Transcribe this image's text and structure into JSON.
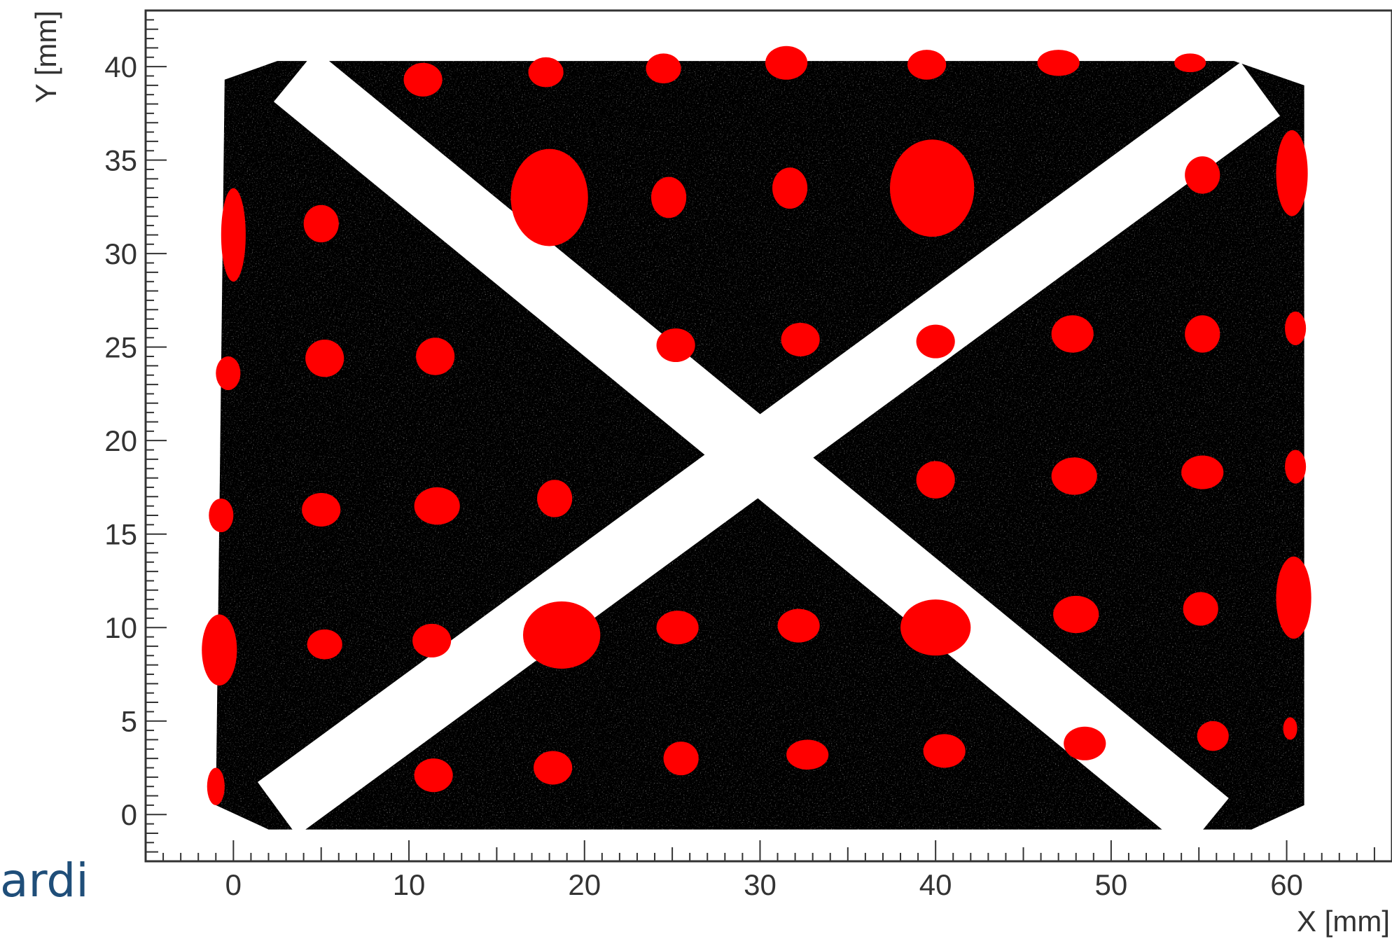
{
  "edge_caption": "ardi",
  "chart_data": {
    "type": "scatter",
    "title": "",
    "xlabel": "X [mm]",
    "ylabel": "Y [mm]",
    "xlim": [
      -5,
      66
    ],
    "ylim": [
      -2.5,
      43
    ],
    "xticks": [
      0,
      10,
      20,
      30,
      40,
      50,
      60
    ],
    "yticks": [
      0,
      5,
      10,
      15,
      20,
      25,
      30,
      35,
      40
    ],
    "grid": false,
    "legend": "none",
    "colors": {
      "background_hits": "#000000",
      "spot_hits": "#ff0000",
      "frame": "#333333"
    },
    "series": [
      {
        "color": "#000000",
        "description_type": "density-region",
        "region": [
          [
            2.5,
            40.3
          ],
          [
            57,
            40.3
          ],
          [
            61,
            39
          ],
          [
            61,
            0.5
          ],
          [
            58,
            -0.8
          ],
          [
            2,
            -0.8
          ],
          [
            -1,
            0.5
          ],
          [
            -0.5,
            39.3
          ]
        ],
        "gaps": [
          [
            [
              3.5,
              39.5
            ],
            [
              55.5,
              -0.5
            ]
          ],
          [
            [
              2.5,
              0.3
            ],
            [
              58.5,
              38.8
            ]
          ]
        ]
      },
      {
        "color": "#ff0000",
        "spots": [
          {
            "x": 10.8,
            "y": 39.3,
            "rx": 1.1,
            "ry": 0.9
          },
          {
            "x": 17.8,
            "y": 39.7,
            "rx": 1.0,
            "ry": 0.8
          },
          {
            "x": 24.5,
            "y": 39.9,
            "rx": 1.0,
            "ry": 0.8
          },
          {
            "x": 31.5,
            "y": 40.2,
            "rx": 1.2,
            "ry": 0.9
          },
          {
            "x": 39.5,
            "y": 40.1,
            "rx": 1.1,
            "ry": 0.8
          },
          {
            "x": 47.0,
            "y": 40.2,
            "rx": 1.2,
            "ry": 0.7
          },
          {
            "x": 54.5,
            "y": 40.2,
            "rx": 0.9,
            "ry": 0.5
          },
          {
            "x": 0.0,
            "y": 31.0,
            "rx": 0.7,
            "ry": 2.5
          },
          {
            "x": 5.0,
            "y": 31.6,
            "rx": 1.0,
            "ry": 1.0
          },
          {
            "x": 18.0,
            "y": 33.0,
            "rx": 2.2,
            "ry": 2.6
          },
          {
            "x": 24.8,
            "y": 33.0,
            "rx": 1.0,
            "ry": 1.1
          },
          {
            "x": 31.7,
            "y": 33.5,
            "rx": 1.0,
            "ry": 1.1
          },
          {
            "x": 39.8,
            "y": 33.5,
            "rx": 2.4,
            "ry": 2.6
          },
          {
            "x": 55.2,
            "y": 34.2,
            "rx": 1.0,
            "ry": 1.0
          },
          {
            "x": 60.3,
            "y": 34.3,
            "rx": 0.9,
            "ry": 2.3
          },
          {
            "x": -0.3,
            "y": 23.6,
            "rx": 0.7,
            "ry": 0.9
          },
          {
            "x": 5.2,
            "y": 24.4,
            "rx": 1.1,
            "ry": 1.0
          },
          {
            "x": 11.5,
            "y": 24.5,
            "rx": 1.1,
            "ry": 1.0
          },
          {
            "x": 25.2,
            "y": 25.1,
            "rx": 1.1,
            "ry": 0.9
          },
          {
            "x": 32.3,
            "y": 25.4,
            "rx": 1.1,
            "ry": 0.9
          },
          {
            "x": 40.0,
            "y": 25.3,
            "rx": 1.1,
            "ry": 0.9
          },
          {
            "x": 47.8,
            "y": 25.7,
            "rx": 1.2,
            "ry": 1.0
          },
          {
            "x": 55.2,
            "y": 25.7,
            "rx": 1.0,
            "ry": 1.0
          },
          {
            "x": 60.5,
            "y": 26.0,
            "rx": 0.6,
            "ry": 0.9
          },
          {
            "x": -0.7,
            "y": 16.0,
            "rx": 0.7,
            "ry": 0.9
          },
          {
            "x": 5.0,
            "y": 16.3,
            "rx": 1.1,
            "ry": 0.9
          },
          {
            "x": 11.6,
            "y": 16.5,
            "rx": 1.3,
            "ry": 1.0
          },
          {
            "x": 18.3,
            "y": 16.9,
            "rx": 1.0,
            "ry": 1.0
          },
          {
            "x": 40.0,
            "y": 17.9,
            "rx": 1.1,
            "ry": 1.0
          },
          {
            "x": 47.9,
            "y": 18.1,
            "rx": 1.3,
            "ry": 1.0
          },
          {
            "x": 55.2,
            "y": 18.3,
            "rx": 1.2,
            "ry": 0.9
          },
          {
            "x": 60.5,
            "y": 18.6,
            "rx": 0.6,
            "ry": 0.9
          },
          {
            "x": -0.8,
            "y": 8.8,
            "rx": 1.0,
            "ry": 1.9
          },
          {
            "x": 5.2,
            "y": 9.1,
            "rx": 1.0,
            "ry": 0.8
          },
          {
            "x": 11.3,
            "y": 9.3,
            "rx": 1.1,
            "ry": 0.9
          },
          {
            "x": 18.7,
            "y": 9.6,
            "rx": 2.2,
            "ry": 1.8
          },
          {
            "x": 25.3,
            "y": 10.0,
            "rx": 1.2,
            "ry": 0.9
          },
          {
            "x": 32.2,
            "y": 10.1,
            "rx": 1.2,
            "ry": 0.9
          },
          {
            "x": 40.0,
            "y": 10.0,
            "rx": 2.0,
            "ry": 1.5
          },
          {
            "x": 48.0,
            "y": 10.7,
            "rx": 1.3,
            "ry": 1.0
          },
          {
            "x": 55.1,
            "y": 11.0,
            "rx": 1.0,
            "ry": 0.9
          },
          {
            "x": 60.4,
            "y": 11.6,
            "rx": 1.0,
            "ry": 2.2
          },
          {
            "x": -1.0,
            "y": 1.5,
            "rx": 0.5,
            "ry": 1.0
          },
          {
            "x": 11.4,
            "y": 2.1,
            "rx": 1.1,
            "ry": 0.9
          },
          {
            "x": 18.2,
            "y": 2.5,
            "rx": 1.1,
            "ry": 0.9
          },
          {
            "x": 25.5,
            "y": 3.0,
            "rx": 1.0,
            "ry": 0.9
          },
          {
            "x": 32.7,
            "y": 3.2,
            "rx": 1.2,
            "ry": 0.8
          },
          {
            "x": 40.5,
            "y": 3.4,
            "rx": 1.2,
            "ry": 0.9
          },
          {
            "x": 48.5,
            "y": 3.8,
            "rx": 1.2,
            "ry": 0.9
          },
          {
            "x": 55.8,
            "y": 4.2,
            "rx": 0.9,
            "ry": 0.8
          },
          {
            "x": 60.2,
            "y": 4.6,
            "rx": 0.4,
            "ry": 0.6
          }
        ]
      }
    ]
  }
}
